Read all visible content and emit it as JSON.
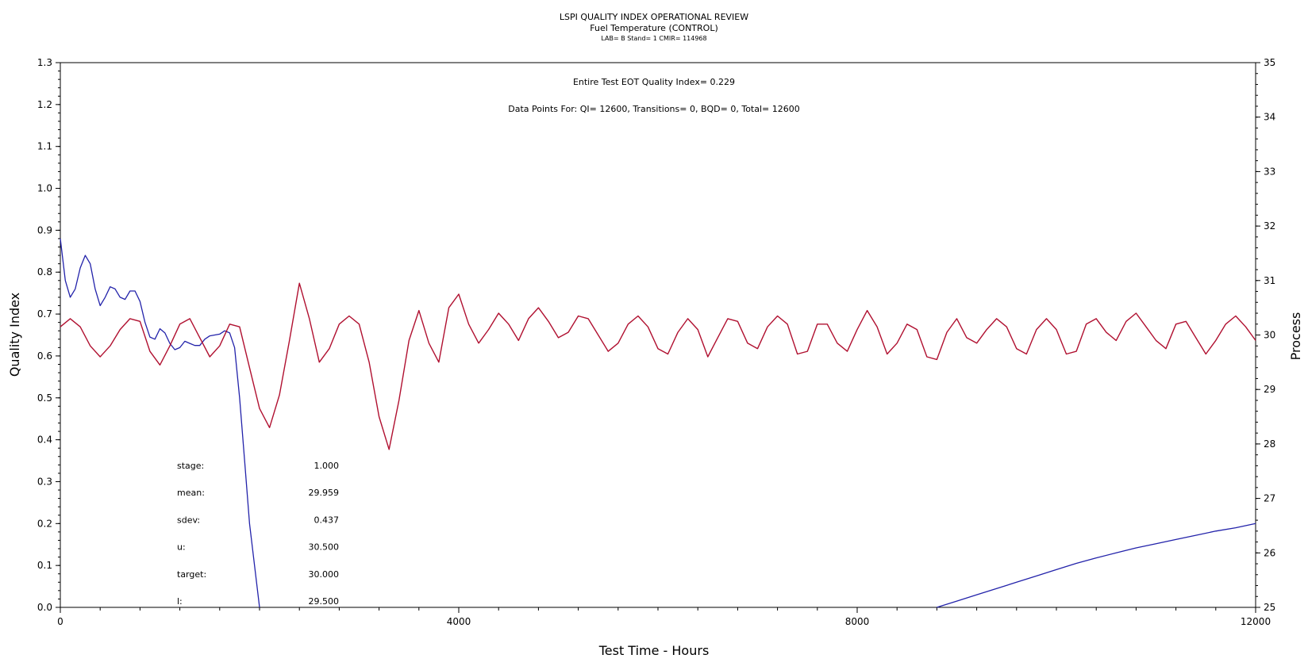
{
  "chart_data": {
    "type": "line",
    "title": "LSPI QUALITY INDEX OPERATIONAL REVIEW",
    "subtitle": "Fuel Temperature (CONTROL)",
    "subtitle2": "LAB= B Stand= 1 CMIR= 114968",
    "xlabel": "Test Time - Hours",
    "ylabel_left": "Quality Index",
    "ylabel_right": "Process",
    "xlim": [
      0,
      12000
    ],
    "ylim_left": [
      0,
      1.3
    ],
    "ylim_right": [
      25,
      35
    ],
    "x_ticks": [
      "0",
      "4000",
      "8000",
      "12000"
    ],
    "y_left_ticks": [
      "0.0",
      "0.1",
      "0.2",
      "0.3",
      "0.4",
      "0.5",
      "0.6",
      "0.7",
      "0.8",
      "0.9",
      "1.0",
      "1.1",
      "1.2",
      "1.3"
    ],
    "y_right_ticks": [
      "25",
      "26",
      "27",
      "28",
      "29",
      "30",
      "31",
      "32",
      "33",
      "34",
      "35"
    ],
    "annotations": {
      "eot": "Entire Test EOT Quality Index=   0.229",
      "points": "Data Points For: QI= 12600, Transitions=     0, BQD=     0, Total= 12600"
    },
    "stats": [
      {
        "label": "stage:",
        "value": "1.000"
      },
      {
        "label": "mean:",
        "value": "29.959"
      },
      {
        "label": "sdev:",
        "value": "0.437"
      },
      {
        "label": "u:",
        "value": "30.500"
      },
      {
        "label": "target:",
        "value": "30.000"
      },
      {
        "label": "l:",
        "value": "29.500"
      }
    ],
    "series": [
      {
        "axis": "left",
        "color": "#2222aa",
        "segments": [
          {
            "x": [
              0,
              50,
              100,
              150,
              200,
              250,
              300,
              350,
              400,
              450,
              500,
              550,
              600,
              650,
              700,
              750,
              800,
              850,
              900,
              950,
              1000,
              1050,
              1100,
              1150,
              1200,
              1250,
              1300,
              1350,
              1400,
              1450,
              1500,
              1550,
              1600,
              1650,
              1700,
              1750,
              1800,
              1850,
              1900,
              1950,
              2000,
              2050,
              2100
            ],
            "y": [
              0.88,
              0.78,
              0.74,
              0.76,
              0.81,
              0.84,
              0.82,
              0.76,
              0.72,
              0.74,
              0.765,
              0.76,
              0.74,
              0.735,
              0.755,
              0.755,
              0.73,
              0.68,
              0.645,
              0.64,
              0.665,
              0.655,
              0.63,
              0.615,
              0.62,
              0.635,
              0.63,
              0.625,
              0.625,
              0.64,
              0.648,
              0.65,
              0.652,
              0.66,
              0.655,
              0.62,
              0.5,
              0.35,
              0.2,
              0.1,
              0.0,
              null,
              null
            ]
          },
          {
            "x": [
              8800,
              9000,
              9200,
              9400,
              9600,
              9800,
              10000,
              10200,
              10400,
              10600,
              10800,
              11000,
              11200,
              11400,
              11600,
              11800,
              12000
            ],
            "y": [
              0.0,
              0.015,
              0.03,
              0.045,
              0.06,
              0.075,
              0.09,
              0.105,
              0.118,
              0.13,
              0.142,
              0.152,
              0.162,
              0.172,
              0.182,
              0.19,
              0.2
            ]
          }
        ]
      },
      {
        "axis": "right",
        "color": "#b01030",
        "x": [
          0,
          100,
          200,
          300,
          400,
          500,
          600,
          700,
          800,
          900,
          1000,
          1100,
          1200,
          1300,
          1400,
          1500,
          1600,
          1700,
          1800,
          1900,
          2000,
          2100,
          2200,
          2300,
          2400,
          2500,
          2600,
          2700,
          2800,
          2900,
          3000,
          3100,
          3200,
          3300,
          3400,
          3500,
          3600,
          3700,
          3800,
          3900,
          4000,
          4100,
          4200,
          4300,
          4400,
          4500,
          4600,
          4700,
          4800,
          4900,
          5000,
          5100,
          5200,
          5300,
          5400,
          5500,
          5600,
          5700,
          5800,
          5900,
          6000,
          6100,
          6200,
          6300,
          6400,
          6500,
          6600,
          6700,
          6800,
          6900,
          7000,
          7100,
          7200,
          7300,
          7400,
          7500,
          7600,
          7700,
          7800,
          7900,
          8000,
          8100,
          8200,
          8300,
          8400,
          8500,
          8600,
          8700,
          8800,
          8900,
          9000,
          9100,
          9200,
          9300,
          9400,
          9500,
          9600,
          9700,
          9800,
          9900,
          10000,
          10100,
          10200,
          10300,
          10400,
          10500,
          10600,
          10700,
          10800,
          10900,
          11000,
          11100,
          11200,
          11300,
          11400,
          11500,
          11600,
          11700,
          11800,
          11900,
          12000
        ],
        "y": [
          30.15,
          30.3,
          30.15,
          29.8,
          29.6,
          29.8,
          30.1,
          30.3,
          30.25,
          29.7,
          29.45,
          29.8,
          30.2,
          30.3,
          29.95,
          29.6,
          29.8,
          30.2,
          30.15,
          29.4,
          28.65,
          28.3,
          28.9,
          29.9,
          30.95,
          30.3,
          29.5,
          29.75,
          30.2,
          30.35,
          30.2,
          29.5,
          28.5,
          27.9,
          28.8,
          29.9,
          30.45,
          29.85,
          29.5,
          30.5,
          30.75,
          30.2,
          29.85,
          30.1,
          30.4,
          30.2,
          29.9,
          30.3,
          30.5,
          30.25,
          29.95,
          30.05,
          30.35,
          30.3,
          30.0,
          29.7,
          29.85,
          30.2,
          30.35,
          30.15,
          29.75,
          29.65,
          30.05,
          30.3,
          30.1,
          29.6,
          29.95,
          30.3,
          30.25,
          29.85,
          29.75,
          30.15,
          30.35,
          30.2,
          29.65,
          29.7,
          30.2,
          30.2,
          29.85,
          29.7,
          30.1,
          30.45,
          30.15,
          29.65,
          29.85,
          30.2,
          30.1,
          29.6,
          29.55,
          30.05,
          30.3,
          29.95,
          29.85,
          30.1,
          30.3,
          30.15,
          29.75,
          29.65,
          30.1,
          30.3,
          30.1,
          29.65,
          29.7,
          30.2,
          30.3,
          30.05,
          29.9,
          30.25,
          30.4,
          30.15,
          29.9,
          29.75,
          30.2,
          30.25,
          29.95,
          29.65,
          29.9,
          30.2,
          30.35,
          30.15,
          29.9
        ]
      }
    ]
  }
}
